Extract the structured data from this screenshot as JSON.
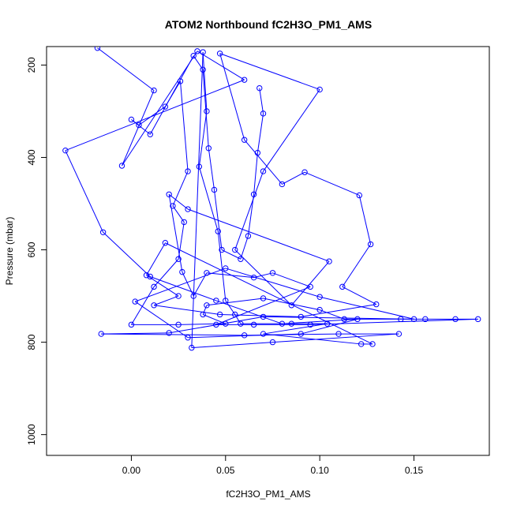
{
  "chart_data": {
    "type": "scatter",
    "title": "ATOM2 Northbound fC2H3O_PM1_AMS",
    "xlabel": "fC2H3O_PM1_AMS",
    "ylabel": "Pressure (mbar)",
    "xlim": [
      -0.045,
      0.19
    ],
    "ylim": [
      1045,
      160
    ],
    "y_reversed": true,
    "x_ticks": [
      0.0,
      0.05,
      0.1,
      0.15
    ],
    "x_tick_labels": [
      "0.00",
      "0.05",
      "0.10",
      "0.15"
    ],
    "y_ticks": [
      200,
      400,
      600,
      800,
      1000
    ],
    "y_tick_labels": [
      "200",
      "400",
      "600",
      "800",
      "1000"
    ],
    "grid": false,
    "marker": "open-circle",
    "connected": true,
    "color": "#0000ff",
    "series": [
      {
        "values": [
          [
            -0.018,
            163
          ],
          [
            0.012,
            255
          ],
          [
            -0.005,
            418
          ],
          [
            0.035,
            170
          ],
          [
            0.06,
            232
          ],
          [
            -0.035,
            385
          ],
          [
            -0.015,
            562
          ],
          [
            0.01,
            658
          ],
          [
            0.045,
            710
          ],
          [
            0.08,
            760
          ],
          [
            0.12,
            750
          ],
          [
            0.09,
            782
          ],
          [
            0.03,
            790
          ],
          [
            0.002,
            712
          ],
          [
            0.05,
            640
          ],
          [
            0.1,
            702
          ],
          [
            0.15,
            750
          ],
          [
            0.07,
            745
          ],
          [
            0.02,
            780
          ],
          [
            -0.016,
            782
          ],
          [
            0.06,
            785
          ],
          [
            0.11,
            782
          ],
          [
            0.142,
            782
          ],
          [
            0.075,
            800
          ],
          [
            0.032,
            812
          ],
          [
            0.038,
            172
          ],
          [
            0.04,
            300
          ],
          [
            0.036,
            420
          ],
          [
            0.046,
            560
          ],
          [
            0.05,
            710
          ],
          [
            0.055,
            740
          ],
          [
            0.058,
            760
          ],
          [
            0.085,
            760
          ],
          [
            0.104,
            760
          ],
          [
            0.07,
            782
          ],
          [
            0.122,
            804
          ],
          [
            0.128,
            804
          ],
          [
            0.018,
            585
          ],
          [
            0.008,
            655
          ],
          [
            0.025,
            700
          ],
          [
            0.012,
            720
          ],
          [
            0.047,
            740
          ],
          [
            0.09,
            745
          ],
          [
            0.13,
            718
          ],
          [
            0.112,
            680
          ],
          [
            0.127,
            588
          ],
          [
            0.121,
            482
          ],
          [
            0.092,
            432
          ],
          [
            0.08,
            458
          ],
          [
            0.06,
            362
          ],
          [
            0.047,
            175
          ],
          [
            0.1,
            253
          ],
          [
            0.07,
            430
          ],
          [
            0.055,
            600
          ],
          [
            0.085,
            720
          ],
          [
            0.105,
            625
          ],
          [
            0.03,
            512
          ],
          [
            0.02,
            480
          ],
          [
            0.027,
            648
          ],
          [
            0.033,
            700
          ],
          [
            0.04,
            650
          ],
          [
            0.065,
            660
          ],
          [
            0.075,
            650
          ],
          [
            0.095,
            680
          ],
          [
            0.045,
            762
          ],
          [
            0.065,
            762
          ],
          [
            0.095,
            762
          ],
          [
            0.184,
            750
          ],
          [
            0.172,
            750
          ],
          [
            0.156,
            750
          ],
          [
            0.143,
            750
          ],
          [
            0.113,
            750
          ],
          [
            0.1,
            730
          ],
          [
            0.07,
            705
          ],
          [
            0.04,
            720
          ],
          [
            0.038,
            740
          ],
          [
            0.05,
            760
          ],
          [
            0.025,
            762
          ],
          [
            0.0,
            762
          ],
          [
            0.012,
            680
          ],
          [
            0.025,
            620
          ],
          [
            0.028,
            540
          ],
          [
            0.022,
            505
          ],
          [
            0.03,
            430
          ],
          [
            0.026,
            235
          ],
          [
            0.018,
            290
          ],
          [
            0.004,
            330
          ],
          [
            0.0,
            318
          ],
          [
            0.01,
            350
          ],
          [
            0.033,
            180
          ],
          [
            0.038,
            210
          ],
          [
            0.041,
            380
          ],
          [
            0.044,
            470
          ],
          [
            0.048,
            600
          ],
          [
            0.058,
            620
          ],
          [
            0.062,
            570
          ],
          [
            0.065,
            480
          ],
          [
            0.067,
            390
          ],
          [
            0.07,
            305
          ],
          [
            0.068,
            250
          ]
        ]
      }
    ]
  }
}
